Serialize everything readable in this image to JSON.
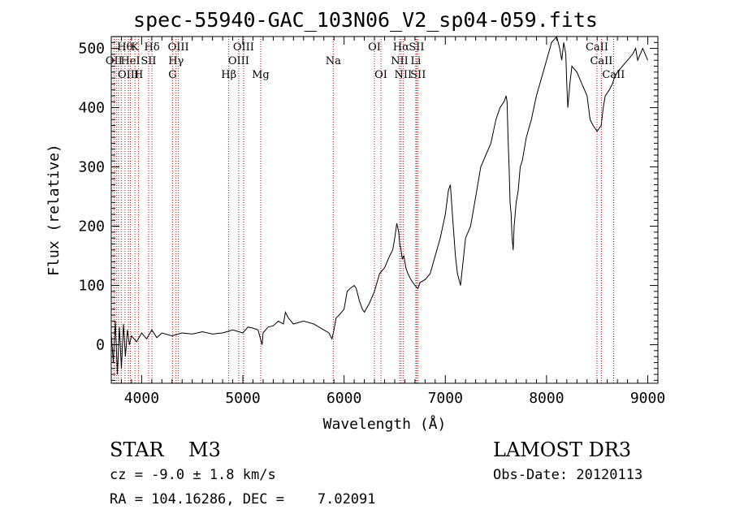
{
  "chart_data": {
    "type": "line",
    "title": "spec-55940-GAC_103N06_V2_sp04-059.fits",
    "xlabel": "Wavelength (Å)",
    "ylabel": "Flux (relative)",
    "xlim": [
      3700,
      9100
    ],
    "ylim": [
      -65,
      520
    ],
    "xticks": [
      4000,
      5000,
      6000,
      7000,
      8000,
      9000
    ],
    "yticks": [
      0,
      100,
      200,
      300,
      400,
      500
    ],
    "spectrum": {
      "x": [
        3700,
        3720,
        3740,
        3760,
        3780,
        3800,
        3820,
        3840,
        3860,
        3880,
        3900,
        3950,
        4000,
        4050,
        4100,
        4150,
        4200,
        4300,
        4400,
        4500,
        4600,
        4700,
        4800,
        4900,
        5000,
        5050,
        5100,
        5150,
        5190,
        5200,
        5250,
        5300,
        5350,
        5400,
        5420,
        5450,
        5500,
        5600,
        5700,
        5800,
        5850,
        5880,
        5900,
        5920,
        5950,
        6000,
        6030,
        6060,
        6100,
        6120,
        6150,
        6180,
        6200,
        6250,
        6300,
        6350,
        6400,
        6450,
        6480,
        6500,
        6520,
        6540,
        6550,
        6562,
        6575,
        6590,
        6610,
        6630,
        6660,
        6700,
        6730,
        6750,
        6800,
        6850,
        6900,
        6950,
        7000,
        7030,
        7050,
        7070,
        7100,
        7120,
        7150,
        7200,
        7250,
        7300,
        7350,
        7400,
        7450,
        7500,
        7540,
        7560,
        7580,
        7600,
        7610,
        7620,
        7630,
        7640,
        7650,
        7660,
        7670,
        7680,
        7700,
        7720,
        7740,
        7760,
        7800,
        7850,
        7900,
        7950,
        8000,
        8050,
        8100,
        8130,
        8150,
        8170,
        8190,
        8200,
        8210,
        8230,
        8250,
        8300,
        8350,
        8400,
        8430,
        8460,
        8500,
        8540,
        8560,
        8580,
        8620,
        8650,
        8670,
        8700,
        8750,
        8800,
        8850,
        8880,
        8900,
        8950,
        9000
      ],
      "y": [
        20,
        -30,
        40,
        -50,
        30,
        -40,
        35,
        -20,
        25,
        0,
        15,
        5,
        20,
        10,
        25,
        12,
        20,
        15,
        20,
        18,
        22,
        18,
        20,
        25,
        20,
        30,
        28,
        25,
        0,
        20,
        30,
        32,
        40,
        35,
        55,
        45,
        35,
        40,
        35,
        25,
        20,
        10,
        25,
        45,
        50,
        60,
        90,
        95,
        100,
        95,
        75,
        60,
        55,
        70,
        90,
        120,
        130,
        150,
        160,
        180,
        205,
        190,
        170,
        160,
        145,
        150,
        130,
        120,
        110,
        100,
        95,
        105,
        110,
        120,
        150,
        180,
        220,
        260,
        270,
        220,
        150,
        120,
        100,
        180,
        200,
        250,
        300,
        320,
        340,
        380,
        400,
        405,
        410,
        420,
        410,
        350,
        300,
        240,
        220,
        180,
        160,
        200,
        240,
        260,
        300,
        310,
        350,
        380,
        420,
        450,
        480,
        510,
        520,
        500,
        480,
        510,
        490,
        440,
        400,
        440,
        470,
        460,
        440,
        420,
        380,
        370,
        360,
        370,
        400,
        420,
        430,
        440,
        450,
        460,
        470,
        480,
        490,
        500,
        480,
        500,
        480
      ]
    },
    "lines": [
      {
        "x": 3727,
        "label": "OII",
        "row": 1
      },
      {
        "x": 3750,
        "label": "",
        "row": 0
      },
      {
        "x": 3771,
        "label": "",
        "row": 0
      },
      {
        "x": 3798,
        "label": "",
        "row": 0
      },
      {
        "x": 3835,
        "label": "Hθ",
        "row": 0
      },
      {
        "x": 3869,
        "label": "OIII",
        "row": 2
      },
      {
        "x": 3889,
        "label": "HeI",
        "row": 1
      },
      {
        "x": 3934,
        "label": "K",
        "row": 0
      },
      {
        "x": 3970,
        "label": "H",
        "row": 2
      },
      {
        "x": 4102,
        "label": "Hδ",
        "row": 0
      },
      {
        "x": 4069,
        "label": "SII",
        "row": 1
      },
      {
        "x": 4340,
        "label": "Hγ",
        "row": 1
      },
      {
        "x": 4305,
        "label": "G",
        "row": 2
      },
      {
        "x": 4363,
        "label": "OIII",
        "row": 0
      },
      {
        "x": 4861,
        "label": "Hβ",
        "row": 2
      },
      {
        "x": 4959,
        "label": "OIII",
        "row": 1
      },
      {
        "x": 5007,
        "label": "OIII",
        "row": 0
      },
      {
        "x": 5176,
        "label": "Mg",
        "row": 2
      },
      {
        "x": 5893,
        "label": "Na",
        "row": 1
      },
      {
        "x": 6300,
        "label": "OI",
        "row": 0
      },
      {
        "x": 6364,
        "label": "OI",
        "row": 2
      },
      {
        "x": 6548,
        "label": "NII",
        "row": 1
      },
      {
        "x": 6563,
        "label": "Hα",
        "row": 0
      },
      {
        "x": 6583,
        "label": "NII",
        "row": 2
      },
      {
        "x": 6708,
        "label": "Li",
        "row": 1
      },
      {
        "x": 6716,
        "label": "SII",
        "row": 0
      },
      {
        "x": 6731,
        "label": "SII",
        "row": 2
      },
      {
        "x": 8498,
        "label": "CaII",
        "row": 0
      },
      {
        "x": 8542,
        "label": "CaII",
        "row": 1
      },
      {
        "x": 8662,
        "label": "CaII",
        "row": 2
      }
    ]
  },
  "info": {
    "object": "STAR    M3",
    "survey": "LAMOST DR3",
    "cz": "cz = -9.0 ± 1.8 km/s",
    "obs_date": "Obs-Date: 20120113",
    "coords": "RA = 104.16286, DEC =    7.02091"
  },
  "colors": {
    "line_marker": "#cc0000",
    "spectrum": "#000000",
    "axes": "#000000"
  }
}
